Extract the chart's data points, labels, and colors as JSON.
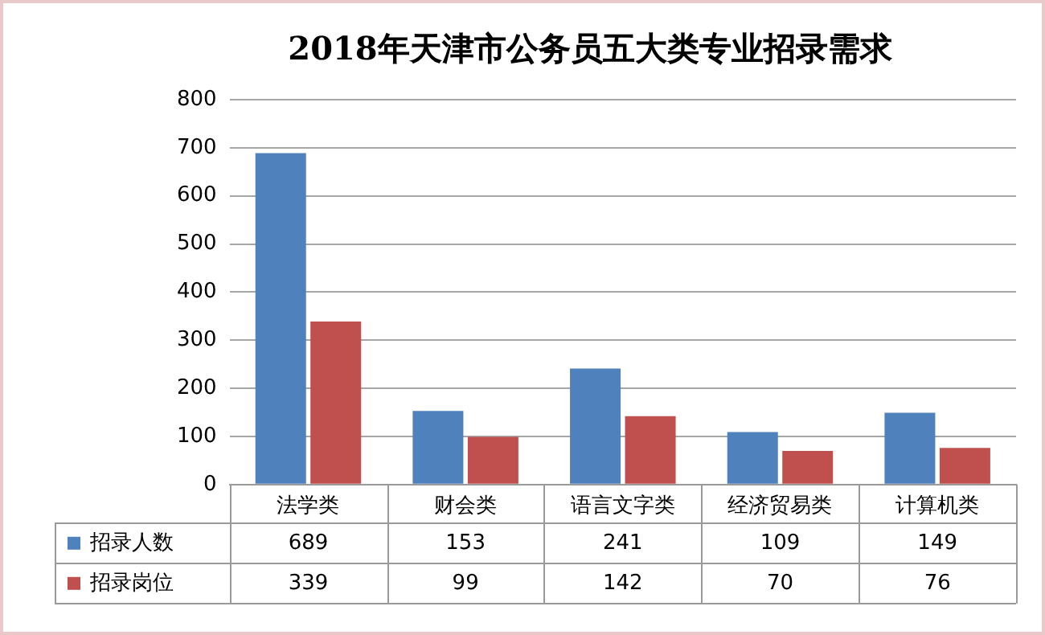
{
  "chart_data": {
    "type": "bar",
    "title": "2018年天津市公务员五大类专业招录需求",
    "categories": [
      "法学类",
      "财会类",
      "语言文字类",
      "经济贸易类",
      "计算机类"
    ],
    "series": [
      {
        "name": "招录人数",
        "color": "#4f81bd",
        "values": [
          689,
          153,
          241,
          109,
          149
        ]
      },
      {
        "name": "招录岗位",
        "color": "#c0504d",
        "values": [
          339,
          99,
          142,
          70,
          76
        ]
      }
    ],
    "ylim": [
      0,
      800
    ],
    "yticks": [
      0,
      100,
      200,
      300,
      400,
      500,
      600,
      700,
      800
    ],
    "grid": "y",
    "legend": "bottom",
    "data_labels": true
  }
}
